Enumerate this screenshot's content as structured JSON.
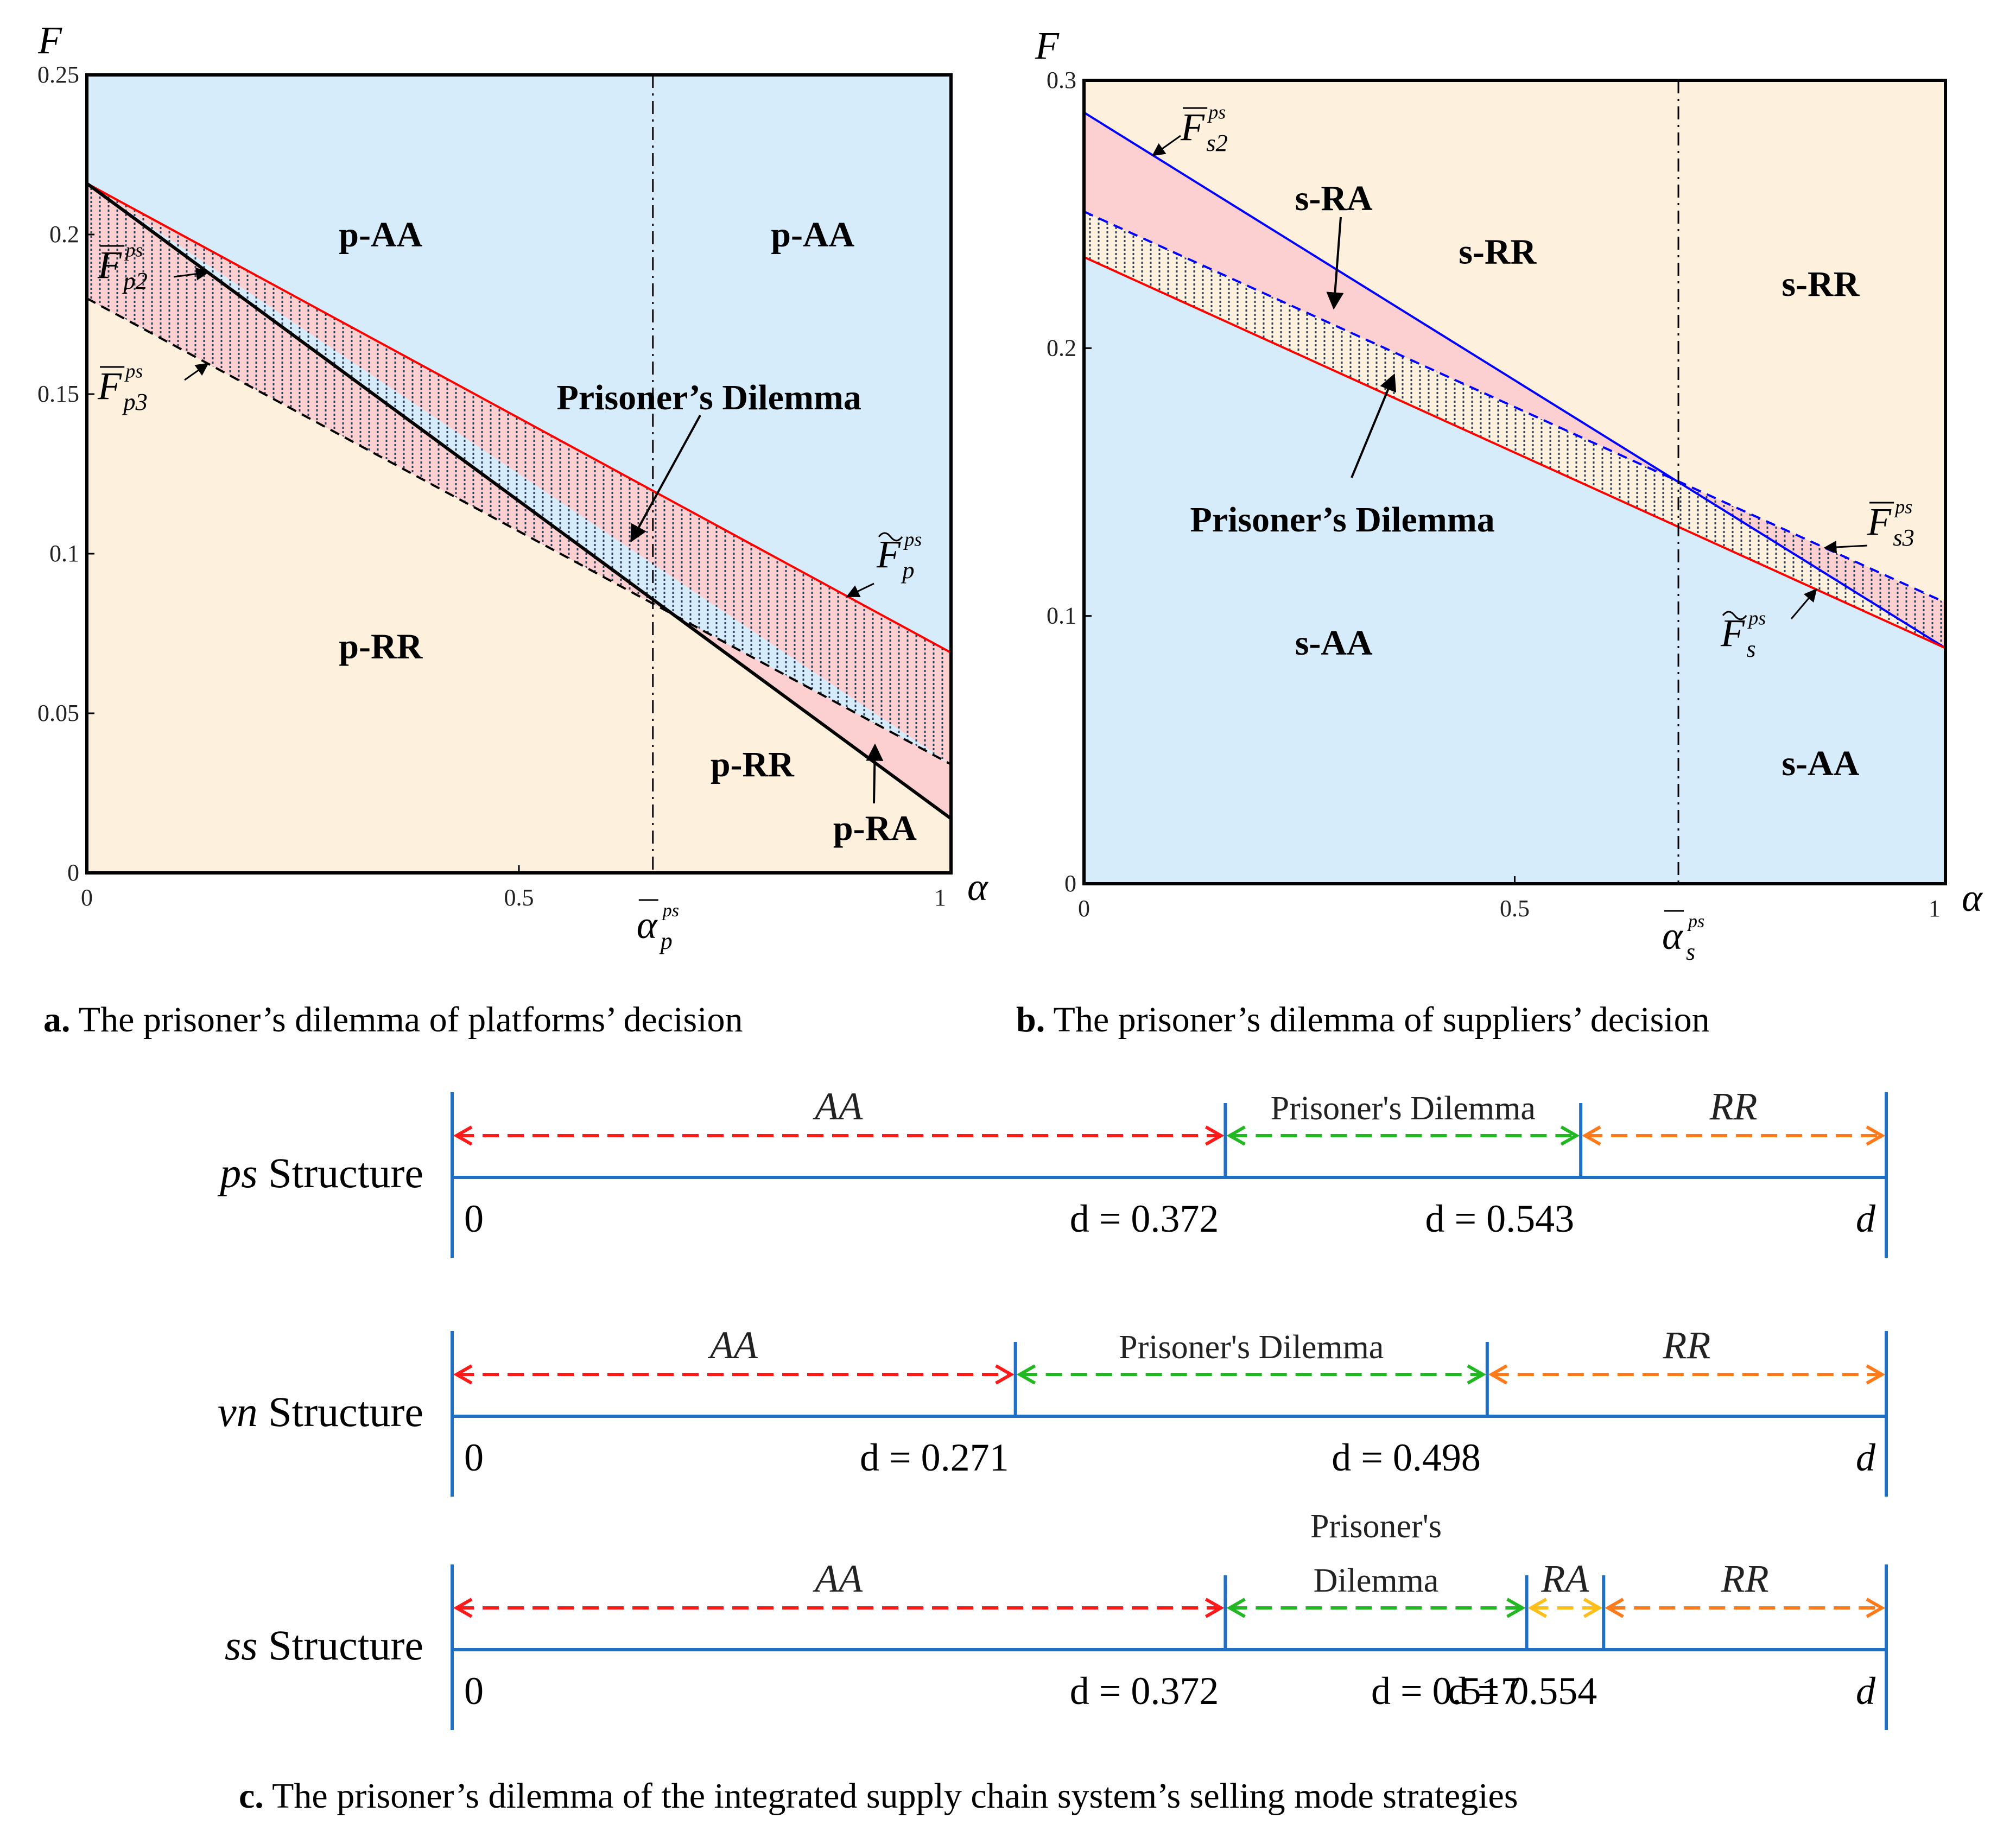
{
  "chart_data": [
    {
      "id": "a",
      "type": "area",
      "xlabel": "α",
      "ylabel": "F",
      "xlim": [
        0,
        1
      ],
      "ylim": [
        0,
        0.25
      ],
      "xticks": [
        {
          "v": 0,
          "label": "0"
        },
        {
          "v": 0.5,
          "label": "0.5"
        },
        {
          "v": 1,
          "label": "1"
        }
      ],
      "yticks": [
        {
          "v": 0,
          "label": "0"
        },
        {
          "v": 0.05,
          "label": "0.05"
        },
        {
          "v": 0.1,
          "label": "0.1"
        },
        {
          "v": 0.15,
          "label": "0.15"
        },
        {
          "v": 0.2,
          "label": "0.2"
        },
        {
          "v": 0.25,
          "label": "0.25"
        }
      ],
      "threshold_x": 0.655,
      "threshold_symbol": "α",
      "threshold_sup": "ps",
      "threshold_sub": "p",
      "colors": {
        "upper": "#d6ecfa",
        "lower": "#fdf0dc",
        "ra": "#fccfd0",
        "red": "#ff0000",
        "black": "#000000",
        "blue": "#0000ff"
      },
      "lines": [
        {
          "key": "red",
          "name_sym": "F",
          "accent": "~",
          "sub": "p",
          "sup": "ps",
          "x": [
            0,
            1
          ],
          "y": [
            0.216,
            0.069
          ],
          "style": "solid",
          "color": "#ff0000"
        },
        {
          "key": "black",
          "name_sym": "F",
          "accent": "‾",
          "sub": "p2",
          "sup": "ps",
          "x": [
            0,
            1
          ],
          "y": [
            0.216,
            0.017
          ],
          "style": "solid",
          "color": "#000000"
        },
        {
          "key": "dash",
          "name_sym": "F",
          "accent": "‾",
          "sub": "p3",
          "sup": "ps",
          "x": [
            0,
            1
          ],
          "y": [
            0.18,
            0.034
          ],
          "style": "dashed",
          "color": "#000000"
        }
      ],
      "regions": [
        {
          "label": "p-AA",
          "x": 0.34,
          "y": 0.2
        },
        {
          "label": "p-AA",
          "x": 0.84,
          "y": 0.2
        },
        {
          "label": "p-RR",
          "x": 0.34,
          "y": 0.071
        },
        {
          "label": "p-RR",
          "x": 0.77,
          "y": 0.034
        },
        {
          "label": "p-RA",
          "x": 0.912,
          "y": 0.014
        },
        {
          "label": "Prisoner’s Dilemma",
          "x": 0.72,
          "y": 0.149
        }
      ]
    },
    {
      "id": "b",
      "type": "area",
      "xlabel": "α",
      "ylabel": "F",
      "xlim": [
        0,
        1
      ],
      "ylim": [
        0,
        0.3
      ],
      "xticks": [
        {
          "v": 0,
          "label": "0"
        },
        {
          "v": 0.5,
          "label": "0.5"
        },
        {
          "v": 1,
          "label": "1"
        }
      ],
      "yticks": [
        {
          "v": 0,
          "label": "0"
        },
        {
          "v": 0.1,
          "label": "0.1"
        },
        {
          "v": 0.2,
          "label": "0.2"
        },
        {
          "v": 0.3,
          "label": "0.3"
        }
      ],
      "threshold_x": 0.69,
      "threshold_symbol": "α",
      "threshold_sup": "ps",
      "threshold_sub": "s",
      "colors": {
        "upper": "#fdf0dc",
        "lower": "#d6ecfa",
        "ra": "#fccfd0",
        "red": "#ff0000",
        "black": "#000000",
        "blue": "#0000ff"
      },
      "lines": [
        {
          "key": "blue",
          "name_sym": "F",
          "accent": "‾",
          "sub": "s2",
          "sup": "ps",
          "x": [
            0,
            1
          ],
          "y": [
            0.288,
            0.088
          ],
          "style": "solid",
          "color": "#0000ff"
        },
        {
          "key": "bluedash",
          "name_sym": "F",
          "accent": "‾",
          "sub": "s3",
          "sup": "ps",
          "x": [
            0,
            1
          ],
          "y": [
            0.251,
            0.105
          ],
          "style": "dashed",
          "color": "#0000ff"
        },
        {
          "key": "red",
          "name_sym": "F",
          "accent": "~",
          "sub": "s",
          "sup": "ps",
          "x": [
            0,
            1
          ],
          "y": [
            0.234,
            0.088
          ],
          "style": "solid",
          "color": "#ff0000"
        }
      ],
      "regions": [
        {
          "label": "s-RA",
          "x": 0.29,
          "y": 0.256
        },
        {
          "label": "s-RR",
          "x": 0.48,
          "y": 0.236
        },
        {
          "label": "s-RR",
          "x": 0.855,
          "y": 0.224
        },
        {
          "label": "s-AA",
          "x": 0.29,
          "y": 0.09
        },
        {
          "label": "s-AA",
          "x": 0.855,
          "y": 0.045
        },
        {
          "label": "Prisoner’s Dilemma",
          "x": 0.3,
          "y": 0.136
        }
      ]
    },
    {
      "id": "c",
      "type": "table",
      "axis_label": "d",
      "rows": [
        {
          "italic": "ps",
          "label": "Structure",
          "segments": [
            {
              "label": "AA",
              "italic": true,
              "from": 0,
              "to": 0.372,
              "color": "#ff1a1a"
            },
            {
              "label": "Prisoner's Dilemma",
              "italic": false,
              "from": 0.372,
              "to": 0.543,
              "color": "#22b822"
            },
            {
              "label": "RR",
              "italic": true,
              "from": 0.543,
              "to": 0.69,
              "color": "#ff7a1a"
            }
          ],
          "ticks": [
            {
              "v": 0,
              "text": "0"
            },
            {
              "v": 0.372,
              "text": "d = 0.372"
            },
            {
              "v": 0.543,
              "text": "d = 0.543"
            }
          ]
        },
        {
          "italic": "vn",
          "label": "Structure",
          "segments": [
            {
              "label": "AA",
              "italic": true,
              "from": 0,
              "to": 0.271,
              "color": "#ff1a1a"
            },
            {
              "label": "Prisoner's Dilemma",
              "italic": false,
              "from": 0.271,
              "to": 0.498,
              "color": "#22b822"
            },
            {
              "label": "RR",
              "italic": true,
              "from": 0.498,
              "to": 0.69,
              "color": "#ff7a1a"
            }
          ],
          "ticks": [
            {
              "v": 0,
              "text": "0"
            },
            {
              "v": 0.271,
              "text": "d = 0.271"
            },
            {
              "v": 0.498,
              "text": "d = 0.498"
            }
          ]
        },
        {
          "italic": "ss",
          "label": "Structure",
          "segments": [
            {
              "label": "AA",
              "italic": true,
              "from": 0,
              "to": 0.372,
              "color": "#ff1a1a"
            },
            {
              "label": "Prisoner's Dilemma",
              "italic": false,
              "from": 0.372,
              "to": 0.517,
              "color": "#22b822"
            },
            {
              "label": "RA",
              "italic": true,
              "from": 0.517,
              "to": 0.554,
              "color": "#ffbf1a"
            },
            {
              "label": "RR",
              "italic": true,
              "from": 0.554,
              "to": 0.69,
              "color": "#ff7a1a"
            }
          ],
          "ticks": [
            {
              "v": 0,
              "text": "0"
            },
            {
              "v": 0.372,
              "text": "d = 0.372"
            },
            {
              "v": 0.517,
              "text": "d = 0.517"
            },
            {
              "v": 0.554,
              "text": "d = 0.554"
            }
          ]
        }
      ]
    }
  ],
  "captions": {
    "a_bold": "a.",
    "a_text": " The prisoner’s dilemma of platforms’ decision",
    "b_bold": "b.",
    "b_text": " The prisoner’s dilemma of suppliers’ decision",
    "c_bold": "c.",
    "c_text": " The prisoner’s dilemma of the integrated supply chain system’s selling mode strategies"
  }
}
